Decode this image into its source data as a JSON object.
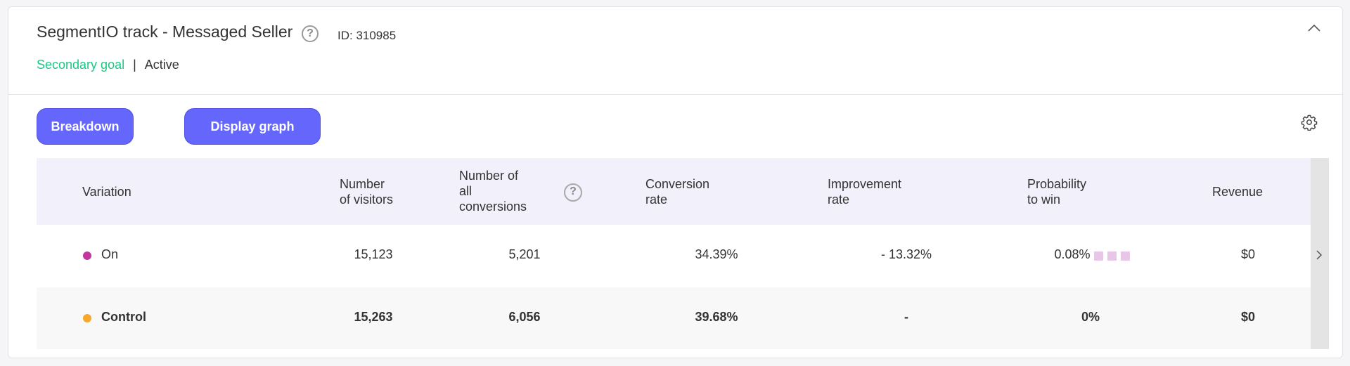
{
  "goal": {
    "title": "SegmentIO track - Messaged Seller",
    "id_text": "ID: 310985",
    "type": "Secondary goal",
    "separator": "|",
    "status": "Active"
  },
  "toolbar": {
    "breakdown_label": "Breakdown",
    "display_graph_label": "Display graph"
  },
  "table": {
    "headers": {
      "variation": "Variation",
      "visitors_1": "Number",
      "visitors_2": "of visitors",
      "conversions_1": "Number of",
      "conversions_2": "all",
      "conversions_3": "conversions",
      "conversion_rate_1": "Conversion",
      "conversion_rate_2": "rate",
      "improvement_1": "Improvement",
      "improvement_2": "rate",
      "probability_1": "Probability",
      "probability_2": "to win",
      "revenue": "Revenue"
    },
    "rows": [
      {
        "name": "On",
        "dot_color": "#c2379e",
        "visitors": "15,123",
        "conversions": "5,201",
        "conversion_rate": "34.39%",
        "improvement": "- 13.32%",
        "probability": "0.08%",
        "revenue": "$0"
      },
      {
        "name": "Control",
        "dot_color": "#f7a82a",
        "visitors": "15,263",
        "conversions": "6,056",
        "conversion_rate": "39.68%",
        "improvement": "-",
        "probability": "0%",
        "revenue": "$0"
      }
    ]
  },
  "colors": {
    "accent": "#6566fb",
    "goal_type": "#1fc784",
    "header_bg": "#f1f0fb"
  },
  "icons": [
    "help-icon",
    "chevron-up-icon",
    "gear-icon",
    "chevron-right-icon"
  ]
}
